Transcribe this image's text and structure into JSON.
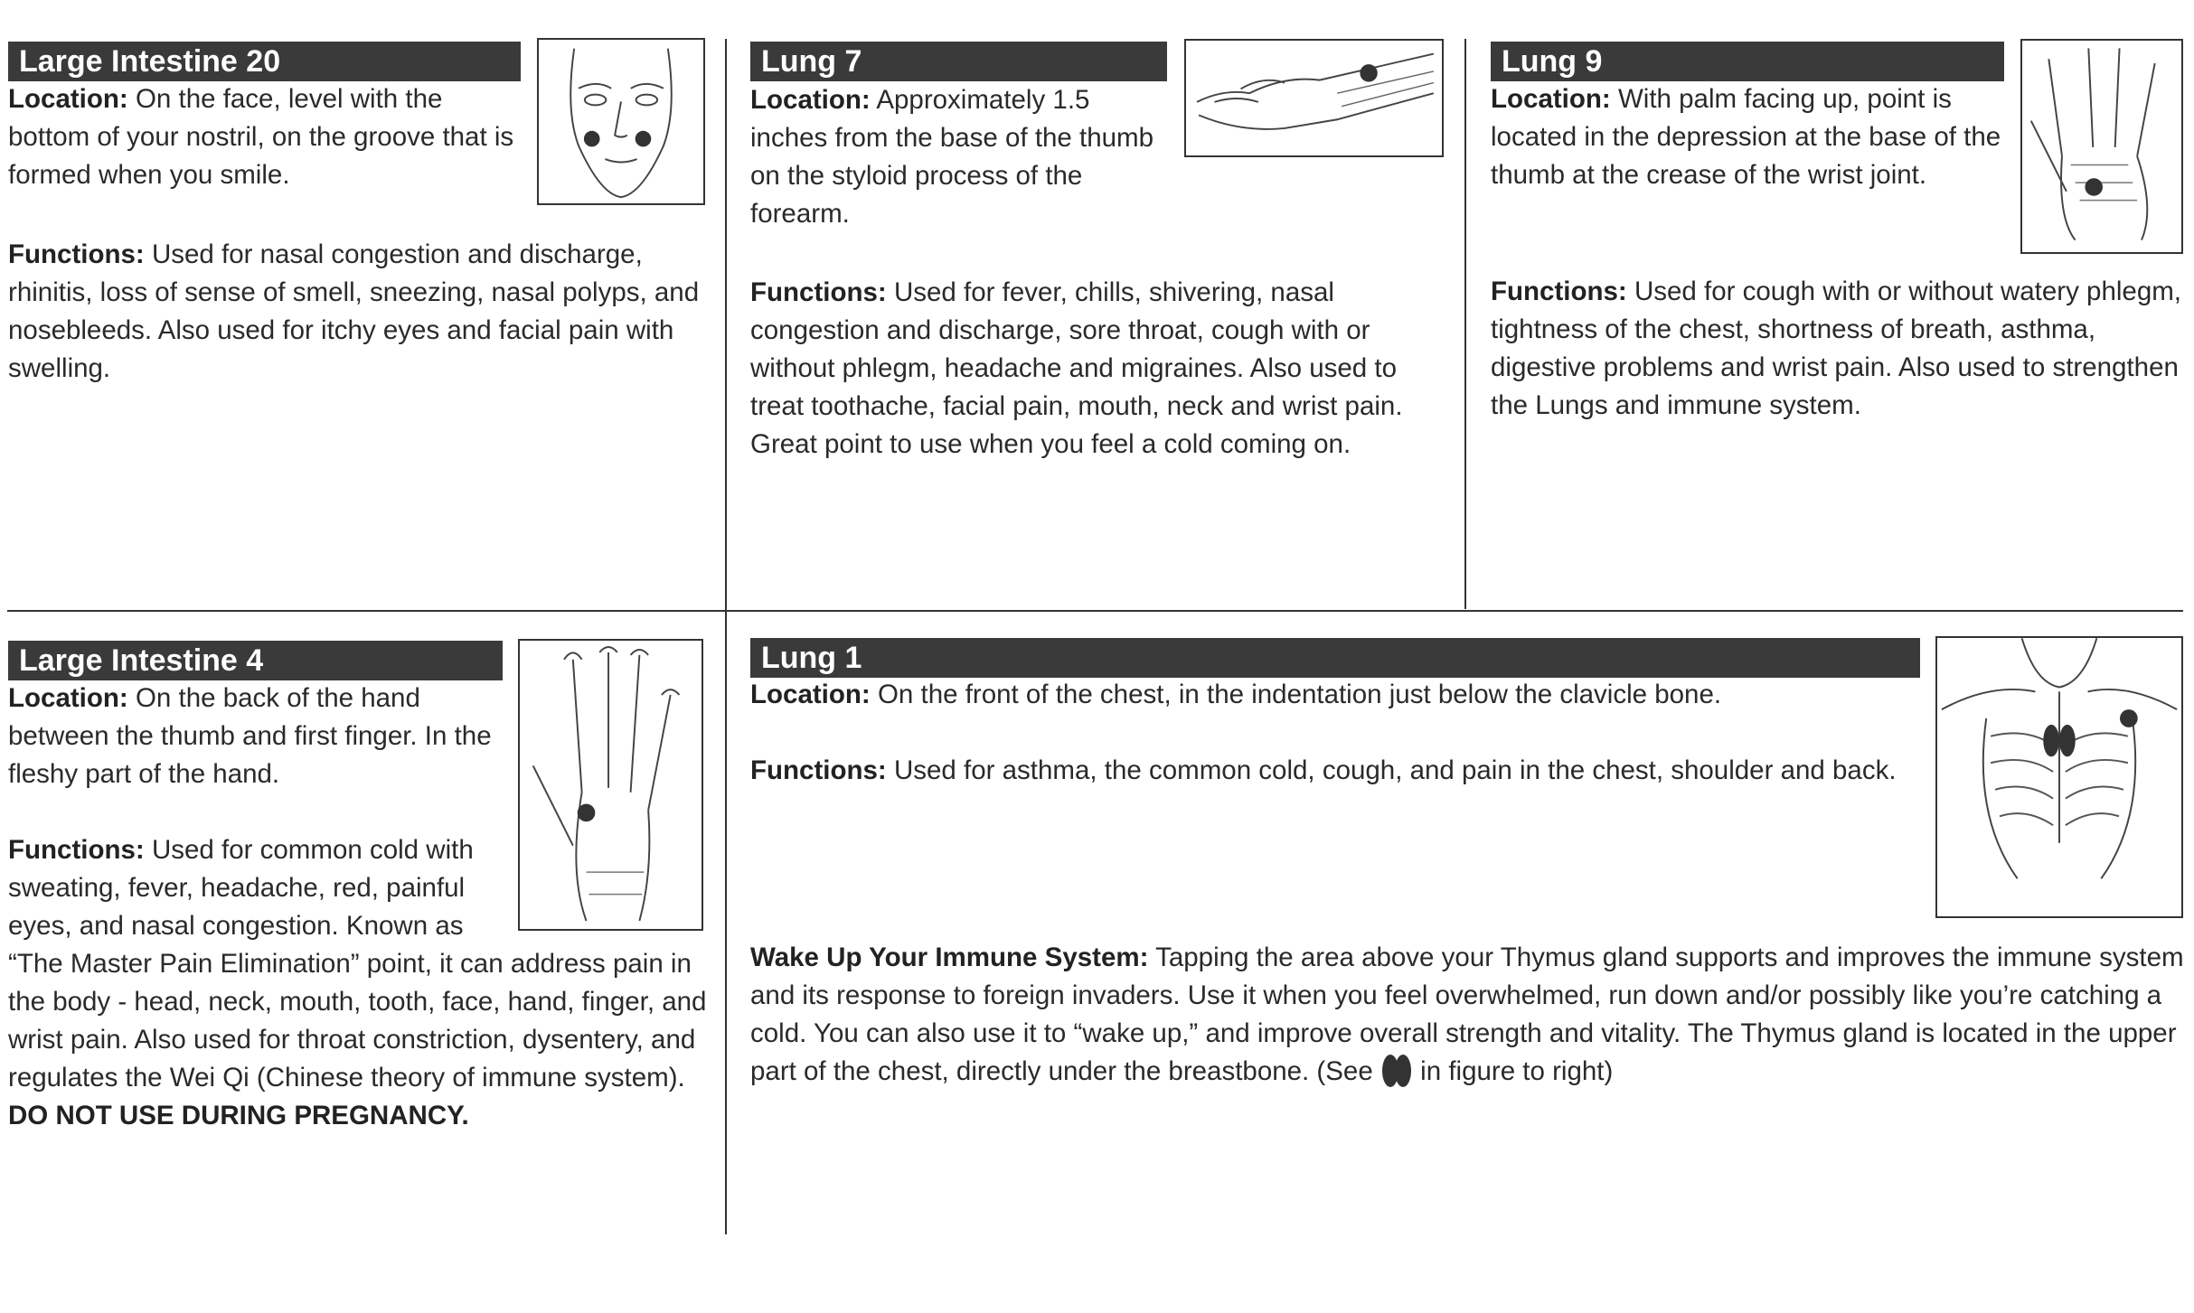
{
  "sections": [
    {
      "title": "Large Intestine 20",
      "location_label": "Location:",
      "location": "On the face, level with the bottom of your nostril, on the groove that is formed when you smile.",
      "functions_label": "Functions:",
      "functions": "Used for nasal congestion and discharge, rhinitis, loss of sense of smell, sneezing, nasal polyps,  and nosebleeds. Also used for itchy eyes and facial pain with swelling."
    },
    {
      "title": "Lung 7",
      "location_label": "Location:",
      "location": "Approximately 1.5 inches from the base of the thumb on the styloid process of the forearm.",
      "functions_label": "Functions:",
      "functions": "Used for fever, chills, shivering, nasal congestion and discharge, sore throat, cough with or without phlegm, headache and migraines. Also used to treat toothache, facial pain, mouth, neck and wrist pain. Great point to use when you feel a cold coming on."
    },
    {
      "title": "Lung 9",
      "location_label": "Location:",
      "location": "With palm facing up, point is located in the depression at the base of the thumb at the crease of the wrist joint.",
      "functions_label": "Functions:",
      "functions": "Used for cough with or without watery phlegm, tightness of the chest, shortness of breath, asthma, digestive problems and wrist pain. Also used to strengthen the Lungs and immune system."
    },
    {
      "title": "Large Intestine 4",
      "location_label": "Location:",
      "location": "On the back of the hand between the thumb and first finger. In the fleshy part of the hand.",
      "functions_label": "Functions:",
      "functions": "Used for common cold with sweating, fever, headache, red, painful eyes, and nasal congestion. Known as “The Master Pain Elimination” point, it can address pain in the body - head, neck, mouth, tooth, face, hand, finger, and wrist pain. Also used for throat constriction, dysentery, and regulates the Wei Qi (Chinese theory of immune system).",
      "warning": "DO NOT USE DURING PREGNANCY."
    },
    {
      "title": "Lung 1",
      "location_label": "Location:",
      "location": "On the front of the chest, in the indentation just below the clavicle bone.",
      "functions_label": "Functions:",
      "functions": "Used for asthma, the common cold, cough, and pain in the chest, shoulder and back.",
      "note_label": "Wake Up Your Immune System:",
      "note": "Tapping the area above your Thymus gland supports and improves the immune system and its response to foreign invaders. Use it when you feel overwhelmed, run down and/or possibly like you’re catching a cold. You can also use it to “wake up,” and improve overall strength and vitality. The Thymus gland is located in the upper part of the chest, directly under the breastbone. (See",
      "note_end": "in figure to right)"
    }
  ]
}
